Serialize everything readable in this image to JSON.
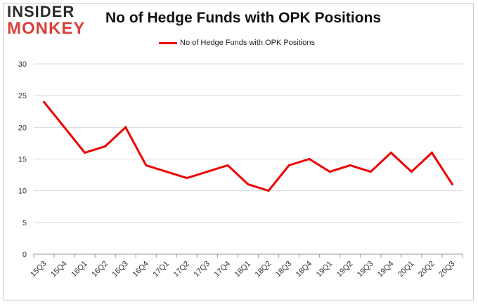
{
  "logo": {
    "line1": "INSIDER",
    "line2": "MONKEY",
    "accent_color": "#d9403a"
  },
  "chart_data": {
    "type": "line",
    "title": "No of Hedge Funds with OPK Positions",
    "xlabel": "",
    "ylabel": "",
    "categories": [
      "15Q3",
      "15Q4",
      "16Q1",
      "16Q2",
      "16Q3",
      "16Q4",
      "17Q1",
      "17Q2",
      "17Q3",
      "17Q4",
      "18Q1",
      "18Q2",
      "18Q3",
      "18Q4",
      "19Q1",
      "19Q2",
      "19Q3",
      "19Q4",
      "20Q1",
      "20Q2",
      "20Q3"
    ],
    "series": [
      {
        "name": "No of Hedge Funds with OPK Positions",
        "color": "#ee0000",
        "values": [
          24,
          20,
          16,
          17,
          20,
          14,
          13,
          12,
          13,
          14,
          11,
          10,
          14,
          15,
          13,
          14,
          13,
          16,
          13,
          16,
          11
        ]
      }
    ],
    "ylim": [
      0,
      30
    ],
    "yticks": [
      0,
      5,
      10,
      15,
      20,
      25,
      30
    ],
    "grid": true,
    "legend": "top-center"
  }
}
